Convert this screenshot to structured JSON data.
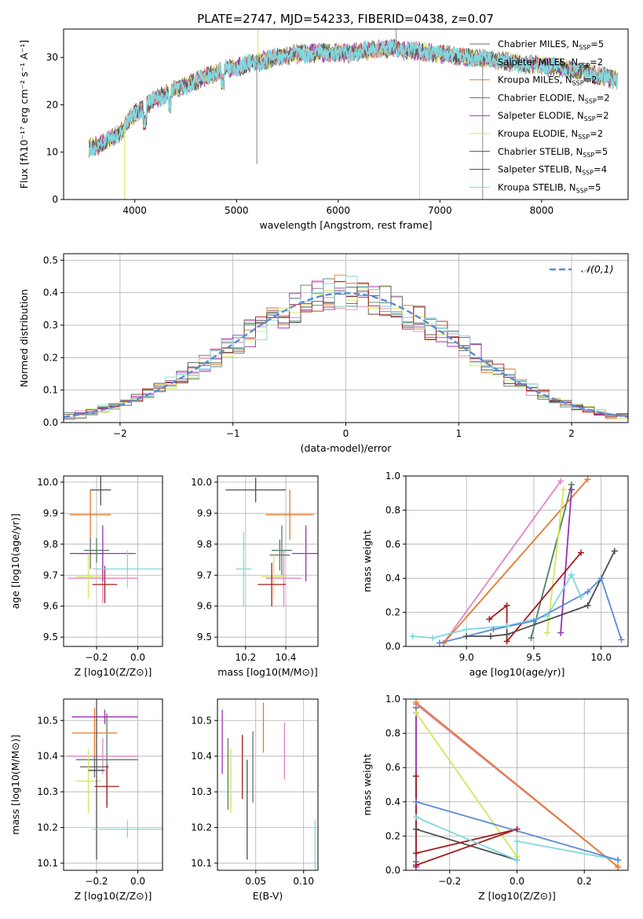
{
  "figure_title": "PLATE=2747, MJD=54233, FIBERID=0438, z=0.07",
  "models": [
    {
      "name": "Chabrier MILES",
      "n": "5",
      "color": "#4f7f62"
    },
    {
      "name": "Salpeter MILES",
      "n": "2",
      "color": "#e384c4"
    },
    {
      "name": "Kroupa MILES",
      "n": "2",
      "color": "#e07b2e"
    },
    {
      "name": "Chabrier ELODIE",
      "n": "2",
      "color": "#6e6e6e"
    },
    {
      "name": "Salpeter ELODIE",
      "n": "2",
      "color": "#9c2fb8"
    },
    {
      "name": "Kroupa ELODIE",
      "n": "2",
      "color": "#d4e65a"
    },
    {
      "name": "Chabrier STELIB",
      "n": "5",
      "color": "#4d4d4d"
    },
    {
      "name": "Salpeter STELIB",
      "n": "4",
      "color": "#a51c1c"
    },
    {
      "name": "Kroupa STELIB",
      "n": "5",
      "color": "#7fd9de"
    }
  ],
  "chart_data": [
    {
      "id": "spectrum",
      "type": "line",
      "title": "PLATE=2747, MJD=54233, FIBERID=0438, z=0.07",
      "xlabel": "wavelength [Angstrom, rest frame]",
      "ylabel": "Flux [fλ10⁻¹⁷ erg cm⁻² s⁻¹ A⁻¹]",
      "xlim": [
        3300,
        8850
      ],
      "ylim": [
        0,
        36
      ],
      "xticks": [
        4000,
        5000,
        6000,
        7000,
        8000
      ],
      "yticks": [
        0,
        10,
        20,
        30
      ],
      "legend_position": "top-right",
      "continuum_x": [
        3550,
        3700,
        3850,
        3950,
        4050,
        4200,
        4350,
        4500,
        4700,
        4900,
        5100,
        5300,
        5500,
        5700,
        5900,
        6100,
        6300,
        6500,
        6700,
        6900,
        7100,
        7300,
        7500,
        7700,
        7900,
        8100,
        8300,
        8500,
        8700
      ],
      "continuum_y": [
        11,
        12,
        14,
        17,
        19,
        21,
        23,
        24,
        26,
        27.5,
        28.5,
        29.5,
        30.5,
        31,
        31,
        31,
        31.5,
        32,
        31.5,
        31,
        30.5,
        30,
        29.5,
        29,
        28.5,
        28,
        27.5,
        26.5,
        25.5
      ],
      "spikes": [
        {
          "x": 3900,
          "y": 0
        },
        {
          "x": 5200,
          "y": 7.5
        },
        {
          "x": 5210,
          "y": 36
        },
        {
          "x": 6570,
          "y": 36
        },
        {
          "x": 6800,
          "y": 0
        },
        {
          "x": 7420,
          "y": 0
        }
      ]
    },
    {
      "id": "residuals",
      "type": "histogram",
      "xlabel": "(data-model)/error",
      "ylabel": "Normed distribution",
      "xlim": [
        -2.5,
        2.5
      ],
      "ylim": [
        0,
        0.52
      ],
      "xticks": [
        -2,
        -1,
        0,
        1,
        2
      ],
      "yticks": [
        0.0,
        0.1,
        0.2,
        0.3,
        0.4,
        0.5
      ],
      "bin_width": 0.1,
      "bin_start": -2.5,
      "reference": {
        "label": "𝒩(0,1)",
        "mean": 0,
        "sigma": 1,
        "color": "#5b8bd6"
      },
      "legend_position": "top-right"
    },
    {
      "id": "age-vs-Z",
      "type": "errorbar",
      "xlabel": "Z [log10(Z/Z⊙)]",
      "ylabel": "age  [log10(age/yr)]",
      "xlim": [
        -0.36,
        0.12
      ],
      "ylim": [
        9.47,
        10.02
      ],
      "xticks": [
        -0.2,
        0.0
      ],
      "yticks": [
        9.5,
        9.6,
        9.7,
        9.8,
        9.9,
        10.0
      ],
      "points": [
        {
          "model": 0,
          "x": -0.2,
          "y": 9.78,
          "xerr": 0.06,
          "yerr": 0.04
        },
        {
          "model": 1,
          "x": -0.17,
          "y": 9.69,
          "xerr": 0.17,
          "yerr": 0.08
        },
        {
          "model": 2,
          "x": -0.23,
          "y": 9.895,
          "xerr": 0.1,
          "yerr": 0.08
        },
        {
          "model": 3,
          "x": -0.23,
          "y": 9.77,
          "xerr": 0.07,
          "yerr": 0.05
        },
        {
          "model": 4,
          "x": -0.17,
          "y": 9.77,
          "xerr": 0.16,
          "yerr": 0.09
        },
        {
          "model": 5,
          "x": -0.24,
          "y": 9.695,
          "xerr": 0.06,
          "yerr": 0.07
        },
        {
          "model": 6,
          "x": -0.18,
          "y": 9.975,
          "xerr": 0.05,
          "yerr": 0.05
        },
        {
          "model": 7,
          "x": -0.16,
          "y": 9.67,
          "xerr": 0.06,
          "yerr": 0.06
        },
        {
          "model": 8,
          "x": -0.05,
          "y": 9.72,
          "xerr": 0.17,
          "yerr": 0.06
        }
      ]
    },
    {
      "id": "age-vs-mass",
      "type": "errorbar",
      "xlabel": "mass [log10(M/M⊙)]",
      "ylabel": "",
      "xlim": [
        10.06,
        10.56
      ],
      "ylim": [
        9.47,
        10.02
      ],
      "xticks": [
        10.2,
        10.4
      ],
      "yticks": [
        9.5,
        9.6,
        9.7,
        9.8,
        9.9,
        10.0
      ],
      "points": [
        {
          "model": 0,
          "x": 10.38,
          "y": 9.78,
          "xerr": 0.05,
          "yerr": 0.08
        },
        {
          "model": 1,
          "x": 10.39,
          "y": 9.69,
          "xerr": 0.09,
          "yerr": 0.09
        },
        {
          "model": 2,
          "x": 10.42,
          "y": 9.895,
          "xerr": 0.12,
          "yerr": 0.08
        },
        {
          "model": 3,
          "x": 10.37,
          "y": 9.765,
          "xerr": 0.05,
          "yerr": 0.05
        },
        {
          "model": 4,
          "x": 10.5,
          "y": 9.77,
          "xerr": 0.07,
          "yerr": 0.09
        },
        {
          "model": 5,
          "x": 10.34,
          "y": 9.695,
          "xerr": 0.06,
          "yerr": 0.07
        },
        {
          "model": 6,
          "x": 10.25,
          "y": 9.975,
          "xerr": 0.15,
          "yerr": 0.04
        },
        {
          "model": 7,
          "x": 10.33,
          "y": 9.67,
          "xerr": 0.07,
          "yerr": 0.07
        },
        {
          "model": 8,
          "x": 10.19,
          "y": 9.72,
          "xerr": 0.04,
          "yerr": 0.12
        }
      ]
    },
    {
      "id": "mass-weight-vs-age",
      "type": "line",
      "xlabel": "age  [log10(age/yr)]",
      "ylabel": "mass weight",
      "xlim": [
        8.55,
        10.2
      ],
      "ylim": [
        0,
        1
      ],
      "xticks": [
        9.0,
        9.5,
        10.0
      ],
      "yticks": [
        0.0,
        0.2,
        0.4,
        0.6,
        0.8,
        1.0
      ],
      "series": [
        {
          "model": 0,
          "x": [
            9.48,
            9.78
          ],
          "y": [
            0.05,
            0.95
          ]
        },
        {
          "model": 1,
          "x": [
            8.83,
            9.7
          ],
          "y": [
            0.02,
            0.97
          ]
        },
        {
          "model": 2,
          "x": [
            8.83,
            9.9
          ],
          "y": [
            0.02,
            0.98
          ]
        },
        {
          "model": 4,
          "x": [
            9.7,
            9.78
          ],
          "y": [
            0.08,
            0.92
          ]
        },
        {
          "model": 5,
          "x": [
            9.6,
            9.72
          ],
          "y": [
            0.08,
            0.92
          ]
        },
        {
          "model": 6,
          "x": [
            9.0,
            9.18,
            9.3,
            9.9,
            10.1
          ],
          "y": [
            0.06,
            0.06,
            0.07,
            0.24,
            0.56
          ]
        },
        {
          "model": 7,
          "x": [
            9.17,
            9.3,
            9.3,
            9.85
          ],
          "y": [
            0.16,
            0.24,
            0.03,
            0.55
          ]
        },
        {
          "model": 8,
          "x": [
            8.6,
            8.75,
            9.0,
            9.3,
            9.6,
            9.78,
            9.85
          ],
          "y": [
            0.06,
            0.05,
            0.1,
            0.12,
            0.18,
            0.42,
            0.29
          ]
        },
        {
          "model": "blue",
          "x": [
            8.8,
            9.2,
            9.5,
            9.9,
            10.0,
            10.15
          ],
          "y": [
            0.02,
            0.1,
            0.15,
            0.32,
            0.4,
            0.04
          ]
        }
      ]
    },
    {
      "id": "mass-vs-Z",
      "type": "errorbar",
      "xlabel": "Z [log10(Z/Z⊙)]",
      "ylabel": "mass [log10(M/M⊙)]",
      "xlim": [
        -0.36,
        0.12
      ],
      "ylim": [
        10.08,
        10.56
      ],
      "xticks": [
        -0.2,
        0.0
      ],
      "yticks": [
        10.1,
        10.2,
        10.3,
        10.4,
        10.5
      ],
      "points": [
        {
          "model": 0,
          "x": -0.15,
          "y": 10.39,
          "xerr": 0.15,
          "yerr": 0.13
        },
        {
          "model": 1,
          "x": -0.17,
          "y": 10.4,
          "xerr": 0.17,
          "yerr": 0.05
        },
        {
          "model": 2,
          "x": -0.21,
          "y": 10.465,
          "xerr": 0.11,
          "yerr": 0.07
        },
        {
          "model": 3,
          "x": -0.21,
          "y": 10.37,
          "xerr": 0.07,
          "yerr": 0.03
        },
        {
          "model": 4,
          "x": -0.16,
          "y": 10.51,
          "xerr": 0.16,
          "yerr": 0.02
        },
        {
          "model": 5,
          "x": -0.24,
          "y": 10.33,
          "xerr": 0.06,
          "yerr": 0.09
        },
        {
          "model": 6,
          "x": -0.2,
          "y": 10.36,
          "xerr": 0.04,
          "yerr": 0.25
        },
        {
          "model": 7,
          "x": -0.15,
          "y": 10.315,
          "xerr": 0.06,
          "yerr": 0.06
        },
        {
          "model": 8,
          "x": -0.05,
          "y": 10.195,
          "xerr": 0.17,
          "yerr": 0.025
        }
      ]
    },
    {
      "id": "mass-vs-EBV",
      "type": "errorbar",
      "xlabel": "E(B-V)",
      "ylabel": "",
      "xlim": [
        0.01,
        0.115
      ],
      "ylim": [
        10.08,
        10.56
      ],
      "xticks": [
        0.05,
        0.1
      ],
      "yticks": [
        10.1,
        10.2,
        10.3,
        10.4,
        10.5
      ],
      "points": [
        {
          "model": 0,
          "x": 0.021,
          "y": 10.35,
          "xerr": 0,
          "yerr": 0.1
        },
        {
          "model": 1,
          "x": 0.08,
          "y": 10.415,
          "xerr": 0,
          "yerr": 0.08
        },
        {
          "model": 2,
          "x": 0.058,
          "y": 10.48,
          "xerr": 0,
          "yerr": 0.07
        },
        {
          "model": 3,
          "x": 0.047,
          "y": 10.37,
          "xerr": 0,
          "yerr": 0.1
        },
        {
          "model": 4,
          "x": 0.015,
          "y": 10.44,
          "xerr": 0,
          "yerr": 0.09
        },
        {
          "model": 5,
          "x": 0.024,
          "y": 10.33,
          "xerr": 0,
          "yerr": 0.09
        },
        {
          "model": 6,
          "x": 0.041,
          "y": 10.25,
          "xerr": 0,
          "yerr": 0.14
        },
        {
          "model": 7,
          "x": 0.036,
          "y": 10.37,
          "xerr": 0,
          "yerr": 0.09
        },
        {
          "model": 8,
          "x": 0.112,
          "y": 10.12,
          "xerr": 0,
          "yerr": 0.1
        }
      ]
    },
    {
      "id": "mass-weight-vs-Z",
      "type": "line",
      "xlabel": "Z [log10(Z/Z⊙)]",
      "ylabel": "mass weight",
      "xlim": [
        -0.33,
        0.33
      ],
      "ylim": [
        0,
        1
      ],
      "xticks": [
        -0.2,
        0.0,
        0.2
      ],
      "yticks": [
        0.0,
        0.2,
        0.4,
        0.6,
        0.8,
        1.0
      ],
      "series": [
        {
          "model": 0,
          "x": [
            -0.3,
            -0.3
          ],
          "y": [
            0.05,
            0.95
          ]
        },
        {
          "model": 4,
          "x": [
            -0.3,
            -0.3
          ],
          "y": [
            0.02,
            0.92
          ]
        },
        {
          "model": 1,
          "x": [
            -0.3,
            0.3
          ],
          "y": [
            0.97,
            0.02
          ]
        },
        {
          "model": 2,
          "x": [
            -0.3,
            0.3
          ],
          "y": [
            0.98,
            0.02
          ]
        },
        {
          "model": 5,
          "x": [
            -0.3,
            0.0
          ],
          "y": [
            0.92,
            0.08
          ]
        },
        {
          "model": 6,
          "x": [
            -0.3,
            0.0
          ],
          "y": [
            0.24,
            0.06
          ]
        },
        {
          "model": 7,
          "x": [
            -0.3,
            -0.3,
            0.0,
            -0.3
          ],
          "y": [
            0.55,
            0.1,
            0.24,
            0.03
          ]
        },
        {
          "model": 8,
          "x": [
            -0.3,
            0.0,
            0.0,
            0.3
          ],
          "y": [
            0.31,
            0.06,
            0.17,
            0.06
          ]
        },
        {
          "model": "blue",
          "x": [
            -0.3,
            0.3
          ],
          "y": [
            0.4,
            0.06
          ]
        }
      ]
    }
  ]
}
